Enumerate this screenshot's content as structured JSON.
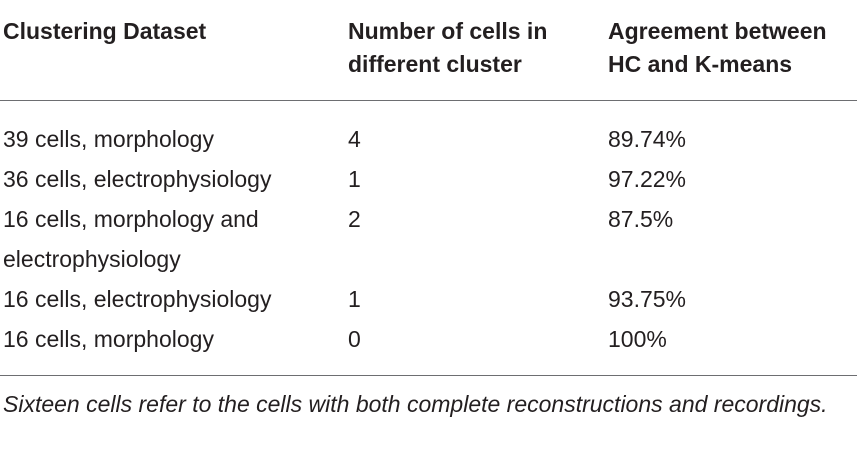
{
  "table": {
    "headers": [
      "Clustering Dataset",
      "Number of cells in different cluster",
      "Agreement between HC and K-means"
    ],
    "rows": [
      [
        "39 cells, morphology",
        "4",
        "89.74%"
      ],
      [
        "36 cells, electrophysiology",
        "1",
        "97.22%"
      ],
      [
        "16 cells, morphology and electrophysiology",
        "2",
        "87.5%"
      ],
      [
        "16 cells, electrophysiology",
        "1",
        "93.75%"
      ],
      [
        "16 cells, morphology",
        "0",
        "100%"
      ]
    ]
  },
  "footnote": "Sixteen cells refer to the cells with both complete reconstructions and recordings."
}
